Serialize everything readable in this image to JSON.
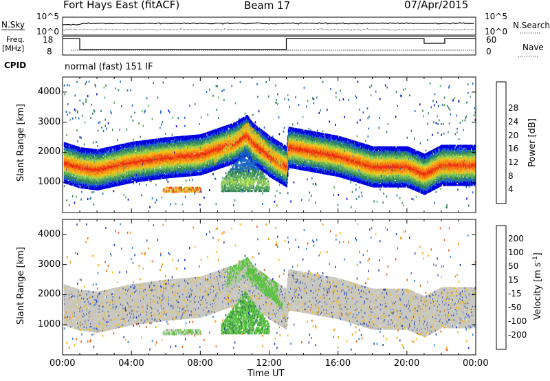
{
  "header": {
    "title": "Fort Hays East (fitACF)",
    "beam": "Beam 17",
    "date": "07/Apr/2015"
  },
  "noise_panel": {
    "left_label": "N.Sky",
    "left_ticks": [
      "10^5",
      "10^0"
    ],
    "right_label": "N.Search",
    "right_ticks": [
      "10^5",
      "10^0"
    ]
  },
  "freq_panel": {
    "left_label_line1": "Freq.",
    "left_label_line2": "[MHz]",
    "left_ticks": [
      "18",
      "8"
    ],
    "right_label": "Nave",
    "right_ticks": [
      "60",
      "0"
    ],
    "cpid_label": "CPID",
    "cpid_text": "normal (fast) 151 IF"
  },
  "colors": {
    "power_scale": [
      "#0000e0",
      "#1a66c8",
      "#2f7f57",
      "#58a85f",
      "#9bd24b",
      "#f2c31d",
      "#f59b14",
      "#f06a12",
      "#ee2a10"
    ],
    "velocity_scale": [
      "#1e3fb8",
      "#2f7de0",
      "#2e7a4a",
      "#59c140",
      "#c8c8c0",
      "#f5b400",
      "#f39000",
      "#ef5a14",
      "#e01010"
    ],
    "ground_scatter": "#c0c0b8"
  },
  "chart_data": [
    {
      "type": "heatmap",
      "panel": "power",
      "xlabel": "",
      "ylabel": "Slant Range [km]",
      "xlim": [
        "00:00",
        "24:00"
      ],
      "ylim": [
        0,
        4500
      ],
      "yticks": [
        "1000",
        "2000",
        "3000",
        "4000"
      ],
      "colorbar_label": "Power [dB]",
      "colorbar_ticks": [
        "4",
        "8",
        "12",
        "16",
        "20",
        "24",
        "28"
      ],
      "features": {
        "main_band_center_km": {
          "hours": [
            0,
            1,
            2,
            4,
            6,
            8,
            10,
            10.7,
            11,
            12,
            13,
            13.1,
            16,
            18,
            20,
            21,
            22,
            24
          ],
          "km": [
            1700,
            1520,
            1450,
            1700,
            1850,
            1950,
            2350,
            2600,
            2350,
            1900,
            1550,
            2200,
            1900,
            1550,
            1550,
            1300,
            1600,
            1600
          ]
        },
        "blob_km_center": 1050,
        "blob_hours": [
          9.2,
          12.0
        ]
      }
    },
    {
      "type": "heatmap",
      "panel": "velocity",
      "xlabel": "Time UT",
      "ylabel": "Slant Range [km]",
      "xticks": [
        "00:00",
        "04:00",
        "08:00",
        "12:00",
        "16:00",
        "20:00",
        "00:00"
      ],
      "xlim": [
        "00:00",
        "24:00"
      ],
      "ylim": [
        0,
        4500
      ],
      "yticks": [
        "1000",
        "2000",
        "3000",
        "4000"
      ],
      "colorbar_label": "Velocity [m s^-1]",
      "colorbar_ticks": [
        "200",
        "100",
        "50",
        "15",
        "-15",
        "-50",
        "-100",
        "-200"
      ]
    }
  ]
}
